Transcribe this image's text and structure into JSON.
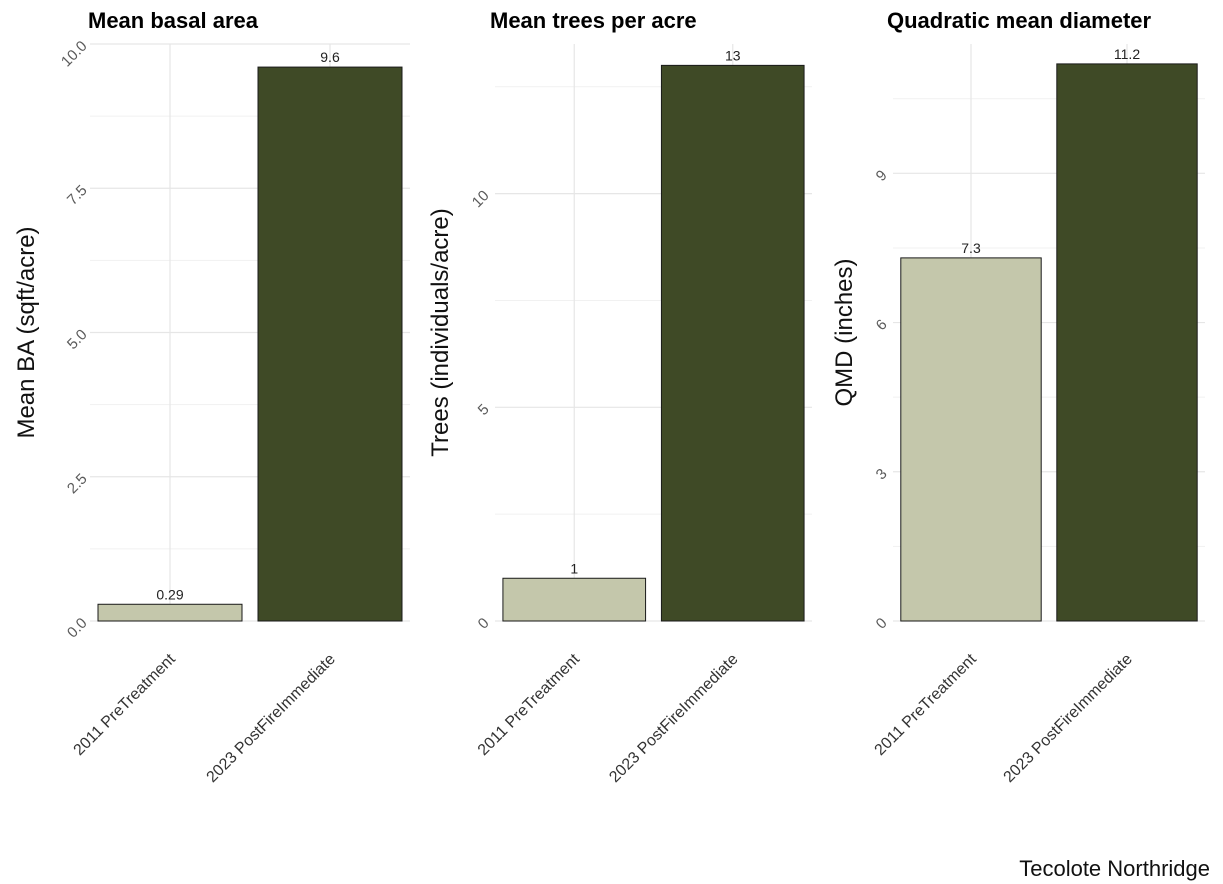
{
  "caption": "Tecolote Northridge",
  "colors": {
    "2011 PreTreatment": "#c4c7ab",
    "2023 PostFireImmediate": "#3f4a26"
  },
  "chart_data": [
    {
      "type": "bar",
      "title": "Mean basal area",
      "xlabel": "",
      "ylabel": "Mean BA (sqft/acre)",
      "categories": [
        "2011 PreTreatment",
        "2023 PostFireImmediate"
      ],
      "values": [
        0.29,
        9.6
      ],
      "value_labels": [
        "0.29",
        "9.6"
      ],
      "ylim": [
        0,
        10
      ],
      "yticks": [
        0,
        2.5,
        5,
        7.5,
        10
      ],
      "ytick_labels": [
        "0.0",
        "2.5",
        "5.0",
        "7.5",
        "10.0"
      ],
      "grid": true,
      "legend": "none"
    },
    {
      "type": "bar",
      "title": "Mean trees per acre",
      "xlabel": "",
      "ylabel": "Trees (individuals/acre)",
      "categories": [
        "2011 PreTreatment",
        "2023 PostFireImmediate"
      ],
      "values": [
        1,
        13
      ],
      "value_labels": [
        "1",
        "13"
      ],
      "ylim": [
        0,
        13.5
      ],
      "yticks": [
        0,
        5,
        10
      ],
      "ytick_labels": [
        "0",
        "5",
        "10"
      ],
      "grid": true,
      "legend": "none"
    },
    {
      "type": "bar",
      "title": "Quadratic mean diameter",
      "xlabel": "",
      "ylabel": "QMD (inches)",
      "categories": [
        "2011 PreTreatment",
        "2023 PostFireImmediate"
      ],
      "values": [
        7.3,
        11.2
      ],
      "value_labels": [
        "7.3",
        "11.2"
      ],
      "ylim": [
        0,
        11.6
      ],
      "yticks": [
        0,
        3,
        6,
        9
      ],
      "ytick_labels": [
        "0",
        "3",
        "6",
        "9"
      ],
      "grid": true,
      "legend": "none"
    }
  ]
}
